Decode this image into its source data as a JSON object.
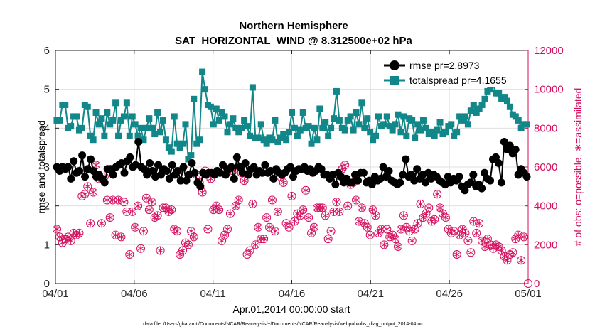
{
  "chart_data": {
    "type": "line",
    "title": "Northern Hemisphere",
    "subtitle": "SAT_HORIZONTAL_WIND @ 8.312500e+02 hPa",
    "xlabel": "Apr.01,2014 00:00:00 start",
    "ylabel": "rmse and totalspread",
    "y2label": "# of obs: o=possible, ∗=assimilated",
    "footnote": "data file: /Users/gharamti/Documents/NCAR/Reanalysis/~/Documents/NCAR/Reanalysis/webpub/obs_diag_output_2014-04.nc",
    "xlim": [
      0,
      30
    ],
    "ylim": [
      0,
      6
    ],
    "y2lim": [
      0,
      12000
    ],
    "xticks": [
      0,
      5,
      10,
      15,
      20,
      25,
      30
    ],
    "xticklabels": [
      "04/01",
      "04/06",
      "04/11",
      "04/16",
      "04/21",
      "04/26",
      "05/01"
    ],
    "yticks": [
      0,
      1,
      2,
      3,
      4,
      5,
      6
    ],
    "yticklabels": [
      "0",
      "1",
      "2",
      "3",
      "4",
      "5",
      "6"
    ],
    "y2ticks": [
      0,
      2000,
      4000,
      6000,
      8000,
      10000,
      12000
    ],
    "y2ticklabels": [
      "0",
      "2000",
      "4000",
      "6000",
      "8000",
      "10000",
      "12000"
    ],
    "grid": true,
    "legend_position": "top-right",
    "colors": {
      "rmse": "#000000",
      "spread": "#12878a",
      "obs": "#d40f5e"
    },
    "series": [
      {
        "name": "rmse pr=2.8973",
        "axis": "left",
        "values": [
          3.0,
          2.9,
          3.0,
          2.95,
          3.0,
          2.7,
          3.15,
          2.85,
          2.9,
          3.3,
          2.75,
          2.95,
          3.2,
          2.9,
          2.75,
          2.8,
          2.7,
          2.6,
          2.95,
          2.95,
          2.8,
          3.0,
          3.05,
          3.1,
          2.85,
          3.15,
          3.25,
          3.0,
          3.05,
          3.65,
          3.0,
          2.95,
          2.8,
          3.1,
          2.9,
          2.75,
          3.05,
          2.8,
          2.95,
          2.9,
          2.7,
          3.05,
          2.8,
          2.9,
          2.65,
          3.0,
          2.65,
          2.8,
          3.1,
          2.85,
          2.6,
          2.5,
          2.85,
          2.8,
          2.85,
          2.85,
          2.8,
          2.9,
          2.85,
          3.05,
          2.8,
          2.95,
          3.0,
          2.7,
          3.25,
          3.0,
          2.85,
          3.1,
          2.8,
          2.95,
          3.0,
          2.8,
          2.9,
          2.85,
          3.05,
          2.85,
          2.9,
          2.7,
          2.95,
          2.85,
          2.8,
          2.85,
          2.95,
          3.0,
          2.75,
          2.9,
          2.95,
          2.95,
          3.0,
          2.9,
          2.95,
          2.85,
          2.9,
          3.0,
          2.95,
          2.8,
          2.8,
          2.7,
          2.8,
          2.55,
          2.85,
          2.75,
          2.6,
          2.7,
          2.6,
          2.6,
          2.8,
          2.65,
          2.85,
          2.85,
          2.6,
          2.65,
          2.55,
          2.75,
          2.65,
          2.7,
          3.0,
          2.75,
          2.9,
          2.65,
          2.6,
          2.55,
          2.6,
          2.8,
          3.2,
          2.75,
          2.8,
          2.65,
          2.95,
          2.7,
          2.8,
          2.6,
          2.85,
          2.7,
          2.8,
          2.75,
          2.65,
          2.6,
          2.55,
          2.75,
          2.6,
          2.7,
          2.65,
          2.75,
          2.5,
          2.4,
          2.55,
          2.6,
          2.8,
          2.5,
          2.55,
          2.45,
          2.85,
          2.7,
          2.65,
          3.2,
          3.25,
          3.1,
          2.6,
          3.65,
          3.45,
          3.55,
          3.35,
          3.45,
          2.8,
          2.95,
          2.85,
          2.75
        ]
      },
      {
        "name": "totalspread pr=4.1655",
        "axis": "left",
        "values": [
          4.2,
          4.2,
          4.6,
          4.6,
          4.0,
          4.05,
          4.3,
          4.3,
          3.95,
          4.0,
          4.6,
          4.55,
          3.8,
          3.7,
          4.4,
          4.1,
          4.25,
          3.8,
          4.4,
          4.1,
          4.2,
          4.65,
          3.8,
          4.2,
          4.3,
          4.65,
          3.8,
          4.3,
          4.1,
          3.8,
          4.0,
          3.7,
          4.0,
          4.25,
          4.0,
          3.85,
          4.4,
          3.9,
          4.2,
          3.7,
          3.5,
          3.4,
          4.3,
          3.6,
          3.5,
          3.6,
          4.1,
          3.2,
          3.3,
          4.75,
          3.6,
          3.7,
          5.45,
          5.0,
          4.6,
          4.55,
          4.1,
          4.5,
          4.2,
          4.4,
          4.3,
          3.9,
          4.1,
          4.25,
          4.0,
          3.9,
          4.0,
          4.2,
          4.05,
          3.8,
          5.05,
          3.75,
          3.75,
          4.1,
          3.7,
          3.6,
          3.75,
          3.7,
          4.2,
          3.65,
          3.75,
          3.85,
          3.7,
          3.9,
          4.4,
          4.0,
          3.8,
          3.95,
          4.4,
          4.0,
          4.05,
          3.6,
          4.0,
          3.7,
          4.5,
          4.0,
          4.15,
          3.8,
          4.0,
          4.25,
          4.95,
          4.2,
          4.0,
          3.95,
          4.2,
          4.3,
          3.95,
          4.4,
          4.1,
          4.65,
          4.0,
          4.25,
          3.9,
          3.7,
          3.8,
          4.3,
          4.05,
          4.1,
          4.3,
          4.05,
          3.95,
          4.1,
          4.35,
          3.9,
          4.3,
          3.8,
          4.25,
          4.2,
          3.75,
          4.1,
          3.95,
          4.2,
          4.0,
          3.85,
          3.9,
          3.8,
          3.95,
          4.15,
          3.85,
          3.9,
          4.05,
          4.1,
          3.8,
          3.9,
          4.3,
          4.2,
          4.3,
          4.1,
          4.45,
          4.6,
          4.4,
          4.5,
          4.6,
          4.75,
          4.95,
          5.0,
          5.15,
          4.9,
          4.9,
          4.75,
          4.8,
          4.7,
          4.55,
          4.35,
          4.3,
          4.2,
          4.0,
          4.1,
          4.1
        ]
      },
      {
        "name": "# of obs",
        "axis": "right",
        "values": [
          2800,
          2400,
          2100,
          2300,
          2400,
          2200,
          2600,
          2500,
          2600,
          4500,
          4600,
          5000,
          3100,
          4700,
          6100,
          5400,
          3100,
          5500,
          4300,
          3400,
          4300,
          2500,
          4300,
          2400,
          4200,
          3700,
          1500,
          3700,
          2900,
          4000,
          1800,
          2700,
          4400,
          3800,
          4200,
          3400,
          3500,
          1700,
          3900,
          3900,
          3700,
          3800,
          2800,
          2700,
          1500,
          1700,
          2100,
          2000,
          2700,
          2400,
          5600,
          5200,
          4700,
          5800,
          2800,
          5400,
          3800,
          4000,
          3800,
          2200,
          2500,
          2800,
          3600,
          5800,
          4000,
          4300,
          5700,
          5300,
          1500,
          1700,
          4100,
          2000,
          2900,
          2300,
          2300,
          3400,
          2900,
          4300,
          2700,
          3700,
          5500,
          5200,
          3100,
          2900,
          4500,
          3200,
          3600,
          3500,
          3800,
          4800,
          3400,
          2600,
          2900,
          3900,
          3900,
          3900,
          3500,
          2300,
          2700,
          3700,
          4200,
          3700,
          5900,
          6100,
          4000,
          5100,
          5200,
          4300,
          3200,
          3900,
          3100,
          2900,
          2500,
          3800,
          3500,
          2600,
          2800,
          2000,
          2800,
          2400,
          2500,
          2300,
          1900,
          2800,
          3500,
          2900,
          2700,
          2200,
          2800,
          3100,
          4100,
          3400,
          3600,
          3900,
          3200,
          3300,
          4600,
          3900,
          3600,
          3400,
          2800,
          2600,
          2700,
          1500,
          2500,
          2800,
          2600,
          2200,
          1600,
          3200,
          2600,
          3100,
          2200,
          1900,
          2300,
          2000,
          1800,
          2000,
          1900,
          1700,
          1400,
          1200,
          1500,
          1600,
          2300,
          2500,
          1200,
          2400,
          0
        ]
      }
    ],
    "obs_markers": {
      "possible": "o",
      "assimilated": "*"
    }
  }
}
